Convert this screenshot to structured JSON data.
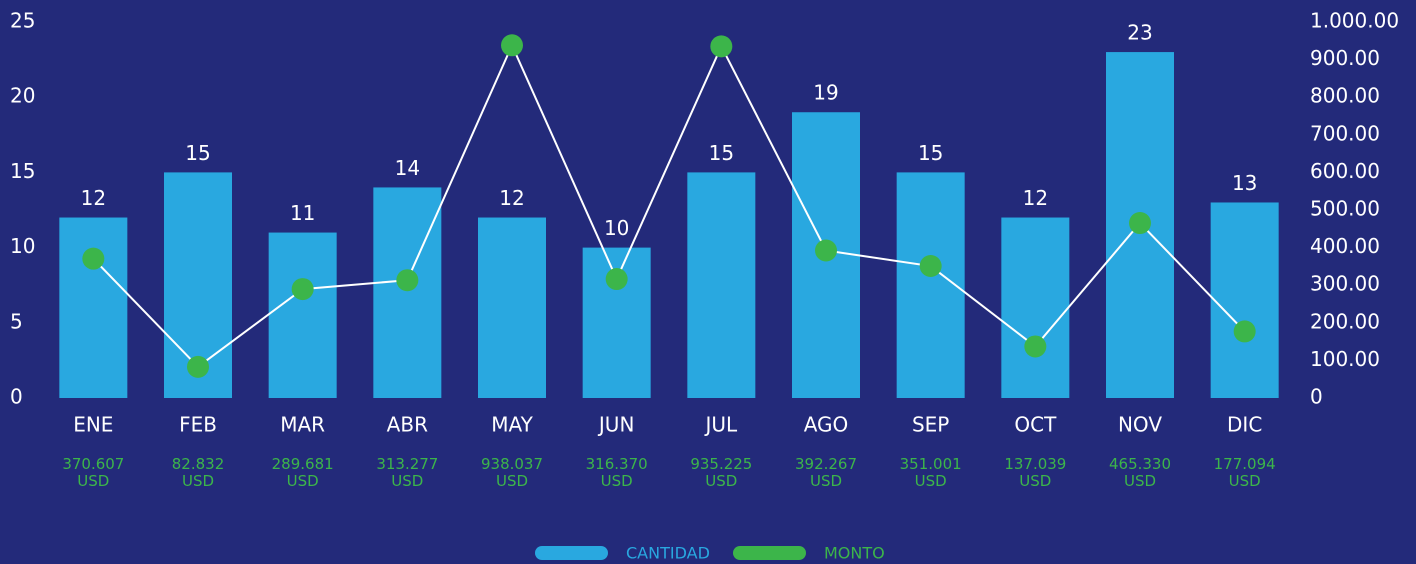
{
  "chart_data": {
    "type": "bar_line",
    "categories": [
      "ENE",
      "FEB",
      "MAR",
      "ABR",
      "MAY",
      "JUN",
      "JUL",
      "AGO",
      "SEP",
      "OCT",
      "NOV",
      "DIC"
    ],
    "series": [
      {
        "name": "CANTIDAD",
        "type": "bar",
        "color": "#29a8e0",
        "axis": "y",
        "values": [
          12,
          15,
          11,
          14,
          12,
          10,
          15,
          19,
          15,
          12,
          23,
          13
        ]
      },
      {
        "name": "MONTO",
        "type": "line",
        "color": "#3cb54a",
        "line_color": "#ffffff",
        "axis": "y2",
        "values": [
          370.607,
          82.832,
          289.681,
          313.277,
          938.037,
          316.37,
          935.225,
          392.267,
          351.001,
          137.039,
          465.33,
          177.094
        ],
        "value_labels": [
          "370.607 USD",
          "82.832 USD",
          "289.681 USD",
          "313.277 USD",
          "938.037 USD",
          "316.370 USD",
          "935.225 USD",
          "392.267 USD",
          "351.001 USD",
          "137.039 USD",
          "465.330 USD",
          "177.094 USD"
        ]
      }
    ],
    "ylim": [
      0,
      25
    ],
    "yticks": [
      0,
      5,
      10,
      15,
      20,
      25
    ],
    "y2lim": [
      0,
      1000
    ],
    "y2ticks": [
      0,
      {
        "value": 100,
        "label": "100.00"
      },
      {
        "value": 200,
        "label": "200.00"
      },
      {
        "value": 300,
        "label": "300.00"
      },
      {
        "value": 400,
        "label": "400.00"
      },
      {
        "value": 500,
        "label": "500.00"
      },
      {
        "value": 600,
        "label": "600.00"
      },
      {
        "value": 700,
        "label": "700.00"
      },
      {
        "value": 800,
        "label": "800.00"
      },
      {
        "value": 900,
        "label": "900.00"
      },
      {
        "value": 1000,
        "label": "1.000.00"
      }
    ],
    "grid": false,
    "legend": "bottom"
  }
}
